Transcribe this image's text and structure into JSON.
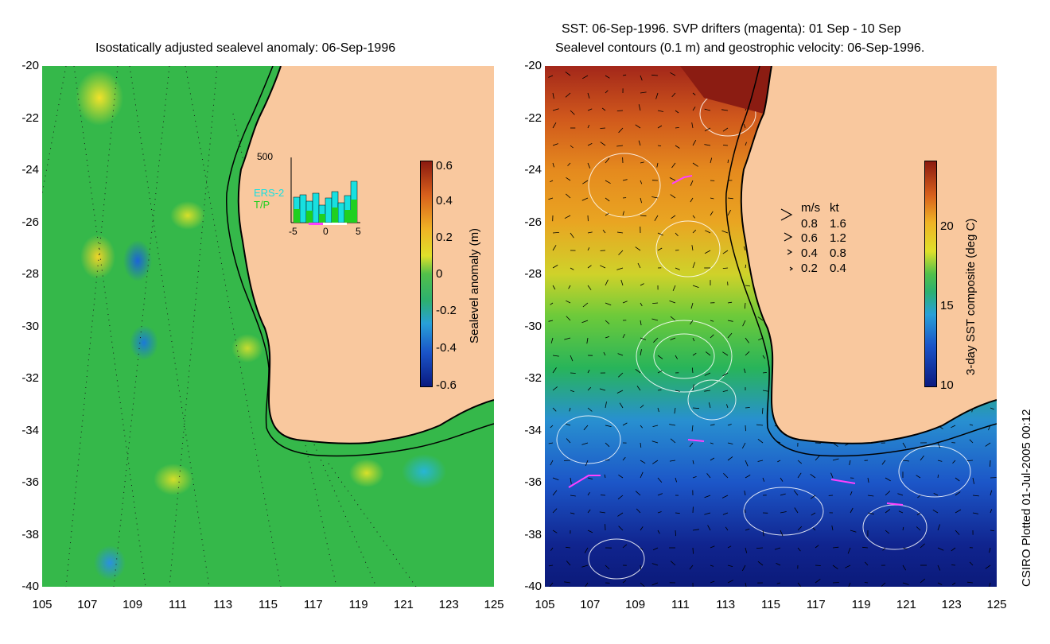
{
  "left_panel": {
    "title": "Isostatically adjusted sealevel anomaly: 06-Sep-1996",
    "colorbar": {
      "label": "Sealevel anomaly (m)",
      "ticks": [
        "0.6",
        "0.4",
        "0.2",
        "0",
        "-0.2",
        "-0.4",
        "-0.6"
      ]
    },
    "inset": {
      "ymax_label": "500",
      "series": [
        "ERS-2",
        "T/P"
      ],
      "series_colors": [
        "#18e0e0",
        "#20d020"
      ],
      "xticks": [
        "-5",
        "0",
        "5"
      ]
    }
  },
  "right_panel": {
    "title_line1": "SST: 06-Sep-1996. SVP drifters (magenta): 01 Sep - 10 Sep",
    "title_line2": "Sealevel contours (0.1 m) and geostrophic velocity: 06-Sep-1996.",
    "colorbar": {
      "label": "3-day SST composite (deg C)",
      "ticks": [
        "20",
        "15",
        "10"
      ]
    },
    "velocity_legend": {
      "header_ms": "m/s",
      "header_kt": "kt",
      "rows": [
        {
          "ms": "0.8",
          "kt": "1.6"
        },
        {
          "ms": "0.6",
          "kt": "1.2"
        },
        {
          "ms": "0.4",
          "kt": "0.8"
        },
        {
          "ms": "0.2",
          "kt": "0.4"
        }
      ]
    }
  },
  "axes": {
    "yticks": [
      "-20",
      "-22",
      "-24",
      "-26",
      "-28",
      "-30",
      "-32",
      "-34",
      "-36",
      "-38",
      "-40"
    ],
    "xticks": [
      "105",
      "107",
      "109",
      "111",
      "113",
      "115",
      "117",
      "119",
      "121",
      "123",
      "125"
    ]
  },
  "credit": "CSIRO Plotted 01-Jul-2005 00:12",
  "colors": {
    "land": "#f9c89e",
    "drifters": "#ff40ff",
    "coast": "#000000"
  }
}
